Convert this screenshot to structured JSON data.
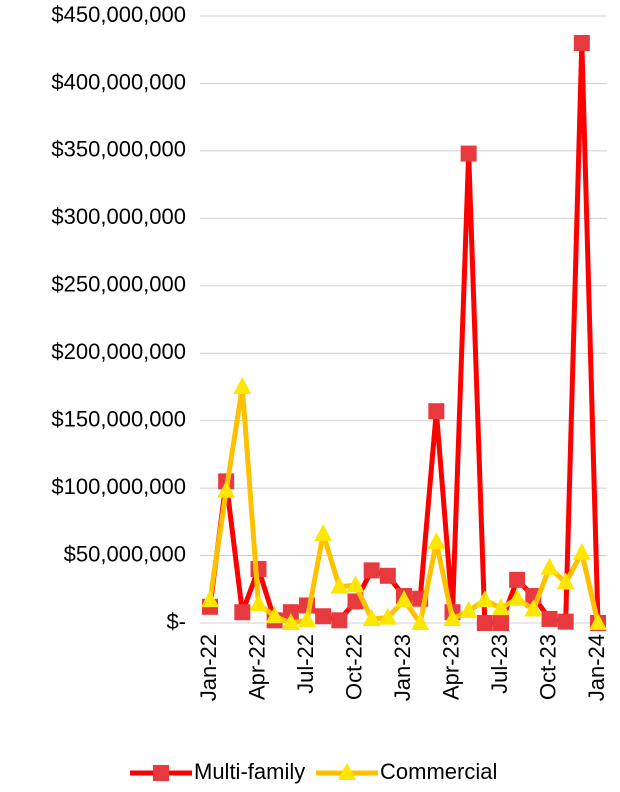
{
  "chart_data": {
    "type": "line",
    "categories": [
      "Jan-22",
      null,
      null,
      "Apr-22",
      null,
      null,
      "Jul-22",
      null,
      null,
      "Oct-22",
      null,
      null,
      "Jan-23",
      null,
      null,
      "Apr-23",
      null,
      null,
      "Jul-23",
      null,
      null,
      "Oct-23",
      null,
      null,
      "Jan-24"
    ],
    "series": [
      {
        "name": "Multi-family",
        "color": "#ff0000",
        "marker_color": "#e8393f",
        "marker": "square",
        "values": [
          12000000,
          105000000,
          8000000,
          40000000,
          2000000,
          8000000,
          13000000,
          5000000,
          2000000,
          16000000,
          39000000,
          35000000,
          20000000,
          18000000,
          157000000,
          8000000,
          348000000,
          0,
          0,
          32000000,
          20000000,
          3000000,
          1000000,
          430000000,
          0
        ]
      },
      {
        "name": "Commercial",
        "color": "#ffc000",
        "marker_color": "#ffe600",
        "marker": "triangle",
        "values": [
          17000000,
          98000000,
          175000000,
          14000000,
          5000000,
          0,
          2000000,
          66000000,
          27000000,
          28000000,
          3000000,
          4000000,
          17000000,
          0,
          60000000,
          3000000,
          9000000,
          17000000,
          11000000,
          18000000,
          10000000,
          41000000,
          30000000,
          52000000,
          0
        ]
      }
    ],
    "ylim": [
      0,
      450000000
    ],
    "yticks": [
      {
        "value": 0,
        "label": "$-"
      },
      {
        "value": 50000000,
        "label": "$50,000,000"
      },
      {
        "value": 100000000,
        "label": "$100,000,000"
      },
      {
        "value": 150000000,
        "label": "$150,000,000"
      },
      {
        "value": 200000000,
        "label": "$200,000,000"
      },
      {
        "value": 250000000,
        "label": "$250,000,000"
      },
      {
        "value": 300000000,
        "label": "$300,000,000"
      },
      {
        "value": 350000000,
        "label": "$350,000,000"
      },
      {
        "value": 400000000,
        "label": "$400,000,000"
      },
      {
        "value": 450000000,
        "label": "$450,000,000"
      }
    ],
    "grid": true,
    "legend": "bottom"
  }
}
